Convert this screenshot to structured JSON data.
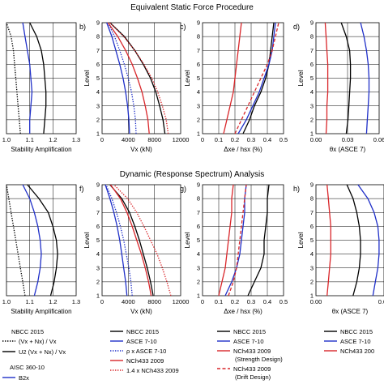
{
  "titles": {
    "top": "Equivalent Static Force Procedure",
    "bottom": "Dynamic (Response Spectrum) Analysis"
  },
  "common": {
    "level_label": "Level",
    "level_ticks": [
      "1",
      "2",
      "3",
      "4",
      "5",
      "6",
      "7",
      "8",
      "9"
    ]
  },
  "panels": {
    "a": {
      "letter": "",
      "xlabel": "Stability Amplification",
      "xticks": [
        "1.0",
        "1.1",
        "1.2",
        "1.3"
      ]
    },
    "b": {
      "letter": "b)",
      "xlabel": "Vx (kN)",
      "xticks": [
        "0",
        "4000",
        "8000",
        "12000"
      ]
    },
    "c": {
      "letter": "c)",
      "xlabel": "Δxe / hsx (%)",
      "xticks": [
        "0",
        "0.1",
        "0.2",
        "0.3",
        "0.4",
        "0.5"
      ]
    },
    "d": {
      "letter": "d)",
      "xlabel": "θx (ASCE 7)",
      "xticks": [
        "0.00",
        "0.03",
        "0.06"
      ]
    },
    "e": {
      "letter": "",
      "xlabel": "Stability Amplification",
      "xticks": [
        "1.0",
        "1.1",
        "1.2",
        "1.3"
      ]
    },
    "f": {
      "letter": "f)",
      "xlabel": "Vx (kN)",
      "xticks": [
        "0",
        "4000",
        "8000",
        "12000"
      ]
    },
    "g": {
      "letter": "g)",
      "xlabel": "Δxe / hsx (%)",
      "xticks": [
        "0",
        "0.1",
        "0.2",
        "0.3",
        "0.4",
        "0.5"
      ]
    },
    "h": {
      "letter": "h)",
      "xlabel": "θx (ASCE 7)",
      "xticks": [
        "0.00",
        "0.03"
      ]
    }
  },
  "legends": {
    "col1": {
      "header": "NBCC 2015",
      "items": [
        "(Vx + Nx) / Vx",
        "U2 (Vx + Nx) / Vx"
      ],
      "header2": "AISC 360-10",
      "items2": [
        "B2x"
      ]
    },
    "col2": {
      "items": [
        "NBCC 2015",
        "ASCE 7-10",
        "ρ x ASCE 7-10",
        "NCh433 2009",
        "1.4 x NCh433 2009"
      ]
    },
    "col3": {
      "items": [
        "NBCC 2015",
        "ASCE 7-10",
        "NCh433 2009",
        "(Strength Design)",
        "NCh433 2009",
        "(Drift Design)"
      ]
    },
    "col4": {
      "items": [
        "NBCC 2015",
        "ASCE 7-10",
        "NCh433 200"
      ]
    }
  },
  "colors": {
    "nbcc": "#000000",
    "asce": "#1f2fc8",
    "nch": "#d9262a"
  },
  "chart_data": [
    {
      "panel": "a",
      "type": "line",
      "title": "Equivalent Static Force Procedure",
      "xlabel": "Stability Amplification",
      "ylabel": "Level",
      "xlim": [
        1.0,
        1.3
      ],
      "ylim": [
        1,
        9
      ],
      "series": [
        {
          "name": "(Vx + Nx) / Vx",
          "style": "dotted",
          "color": "#000000",
          "x": [
            1.06,
            1.055,
            1.05,
            1.045,
            1.04,
            1.035,
            1.03,
            1.02,
            1.0
          ],
          "y": [
            1,
            2,
            3,
            4,
            5,
            6,
            7,
            8,
            9
          ]
        },
        {
          "name": "U2 (Vx + Nx) / Vx",
          "style": "solid",
          "color": "#000000",
          "x": [
            1.16,
            1.165,
            1.17,
            1.17,
            1.165,
            1.16,
            1.15,
            1.13,
            1.1
          ],
          "y": [
            1,
            2,
            3,
            4,
            5,
            6,
            7,
            8,
            9
          ]
        },
        {
          "name": "B2x",
          "style": "solid",
          "color": "#1f2fc8",
          "x": [
            1.1,
            1.1,
            1.105,
            1.11,
            1.105,
            1.1,
            1.09,
            1.08,
            1.07
          ],
          "y": [
            1,
            2,
            3,
            4,
            5,
            6,
            7,
            8,
            9
          ]
        }
      ]
    },
    {
      "panel": "b",
      "type": "line",
      "xlabel": "Vx (kN)",
      "ylabel": "Level",
      "xlim": [
        0,
        12000
      ],
      "ylim": [
        1,
        9
      ],
      "series": [
        {
          "name": "NBCC 2015",
          "style": "solid",
          "color": "#000000",
          "x": [
            9600,
            9300,
            8800,
            8200,
            7400,
            6300,
            5000,
            3400,
            1200
          ],
          "y": [
            1,
            2,
            3,
            4,
            5,
            6,
            7,
            8,
            9
          ]
        },
        {
          "name": "ASCE 7-10",
          "style": "solid",
          "color": "#1f2fc8",
          "x": [
            4200,
            4100,
            3900,
            3600,
            3200,
            2700,
            2100,
            1500,
            700
          ],
          "y": [
            1,
            2,
            3,
            4,
            5,
            6,
            7,
            8,
            9
          ]
        },
        {
          "name": "ρ x ASCE 7-10",
          "style": "dotted",
          "color": "#1f2fc8",
          "x": [
            5200,
            5100,
            4850,
            4500,
            4000,
            3400,
            2700,
            1900,
            900
          ],
          "y": [
            1,
            2,
            3,
            4,
            5,
            6,
            7,
            8,
            9
          ]
        },
        {
          "name": "NCh433 2009",
          "style": "solid",
          "color": "#d9262a",
          "x": [
            7200,
            7000,
            6600,
            6100,
            5400,
            4600,
            3600,
            2400,
            900
          ],
          "y": [
            1,
            2,
            3,
            4,
            5,
            6,
            7,
            8,
            9
          ]
        },
        {
          "name": "1.4 x NCh433 2009",
          "style": "dotted",
          "color": "#d9262a",
          "x": [
            10100,
            9800,
            9200,
            8500,
            7600,
            6400,
            5000,
            3300,
            1200
          ],
          "y": [
            1,
            2,
            3,
            4,
            5,
            6,
            7,
            8,
            9
          ]
        }
      ]
    },
    {
      "panel": "c",
      "type": "line",
      "xlabel": "Δxe / hsx (%)",
      "ylabel": "Level",
      "xlim": [
        0,
        0.5
      ],
      "ylim": [
        1,
        9
      ],
      "series": [
        {
          "name": "NBCC 2015",
          "style": "solid",
          "color": "#000000",
          "x": [
            0.25,
            0.29,
            0.32,
            0.36,
            0.39,
            0.41,
            0.42,
            0.43,
            0.44
          ],
          "y": [
            1,
            2,
            3,
            4,
            5,
            6,
            7,
            8,
            9
          ]
        },
        {
          "name": "ASCE 7-10",
          "style": "solid",
          "color": "#1f2fc8",
          "x": [
            0.22,
            0.27,
            0.31,
            0.35,
            0.38,
            0.41,
            0.43,
            0.44,
            0.45
          ],
          "y": [
            1,
            2,
            3,
            4,
            5,
            6,
            7,
            8,
            9
          ]
        },
        {
          "name": "NCh433 2009 (Strength Design)",
          "style": "solid",
          "color": "#d9262a",
          "x": [
            0.13,
            0.15,
            0.17,
            0.19,
            0.2,
            0.21,
            0.22,
            0.23,
            0.24
          ],
          "y": [
            1,
            2,
            3,
            4,
            5,
            6,
            7,
            8,
            9
          ]
        },
        {
          "name": "NCh433 2009 (Drift Design)",
          "style": "dashed",
          "color": "#d9262a",
          "x": [
            0.2,
            0.24,
            0.28,
            0.32,
            0.36,
            0.4,
            0.43,
            0.45,
            0.47
          ],
          "y": [
            1,
            2,
            3,
            4,
            5,
            6,
            7,
            8,
            9
          ]
        }
      ]
    },
    {
      "panel": "d",
      "type": "line",
      "xlabel": "θx (ASCE 7)",
      "ylabel": "Level",
      "xlim": [
        0,
        0.075
      ],
      "ylim": [
        1,
        9
      ],
      "series": [
        {
          "name": "NBCC 2015",
          "style": "solid",
          "color": "#000000",
          "x": [
            0.036,
            0.038,
            0.039,
            0.04,
            0.041,
            0.041,
            0.04,
            0.036,
            0.03
          ],
          "y": [
            1,
            2,
            3,
            4,
            5,
            6,
            7,
            8,
            9
          ]
        },
        {
          "name": "ASCE 7-10",
          "style": "solid",
          "color": "#1f2fc8",
          "x": [
            0.06,
            0.061,
            0.062,
            0.063,
            0.063,
            0.062,
            0.06,
            0.057,
            0.053
          ],
          "y": [
            1,
            2,
            3,
            4,
            5,
            6,
            7,
            8,
            9
          ]
        },
        {
          "name": "NCh433 2009",
          "style": "solid",
          "color": "#d9262a",
          "x": [
            0.012,
            0.013,
            0.013,
            0.014,
            0.014,
            0.014,
            0.013,
            0.012,
            0.011
          ],
          "y": [
            1,
            2,
            3,
            4,
            5,
            6,
            7,
            8,
            9
          ]
        }
      ]
    },
    {
      "panel": "e",
      "type": "line",
      "title": "Dynamic (Response Spectrum) Analysis",
      "xlabel": "Stability Amplification",
      "ylabel": "Level",
      "xlim": [
        1.0,
        1.3
      ],
      "ylim": [
        1,
        9
      ],
      "series": [
        {
          "name": "(Vx + Nx) / Vx",
          "style": "dotted",
          "color": "#000000",
          "x": [
            1.08,
            1.07,
            1.06,
            1.05,
            1.04,
            1.03,
            1.02,
            1.01,
            1.0
          ],
          "y": [
            1,
            2,
            3,
            4,
            5,
            6,
            7,
            8,
            9
          ]
        },
        {
          "name": "U2 (Vx + Nx) / Vx",
          "style": "solid",
          "color": "#000000",
          "x": [
            1.19,
            1.205,
            1.215,
            1.22,
            1.215,
            1.2,
            1.18,
            1.14,
            1.09
          ],
          "y": [
            1,
            2,
            3,
            4,
            5,
            6,
            7,
            8,
            9
          ]
        },
        {
          "name": "B2x",
          "style": "solid",
          "color": "#1f2fc8",
          "x": [
            1.12,
            1.135,
            1.145,
            1.15,
            1.145,
            1.135,
            1.12,
            1.1,
            1.07
          ],
          "y": [
            1,
            2,
            3,
            4,
            5,
            6,
            7,
            8,
            9
          ]
        }
      ]
    },
    {
      "panel": "f",
      "type": "line",
      "xlabel": "Vx (kN)",
      "ylabel": "Level",
      "xlim": [
        0,
        12000
      ],
      "ylim": [
        1,
        9
      ],
      "series": [
        {
          "name": "NBCC 2015",
          "style": "solid",
          "color": "#000000",
          "x": [
            7800,
            7400,
            6900,
            6300,
            5700,
            5000,
            4200,
            3000,
            1200
          ],
          "y": [
            1,
            2,
            3,
            4,
            5,
            6,
            7,
            8,
            9
          ]
        },
        {
          "name": "ASCE 7-10",
          "style": "solid",
          "color": "#1f2fc8",
          "x": [
            3800,
            3600,
            3300,
            3000,
            2700,
            2300,
            1800,
            1200,
            500
          ],
          "y": [
            1,
            2,
            3,
            4,
            5,
            6,
            7,
            8,
            9
          ]
        },
        {
          "name": "ρ x ASCE 7-10",
          "style": "dotted",
          "color": "#1f2fc8",
          "x": [
            4600,
            4400,
            4100,
            3700,
            3300,
            2800,
            2200,
            1500,
            600
          ],
          "y": [
            1,
            2,
            3,
            4,
            5,
            6,
            7,
            8,
            9
          ]
        },
        {
          "name": "NCh433 2009",
          "style": "solid",
          "color": "#d9262a",
          "x": [
            7500,
            7100,
            6600,
            6000,
            5300,
            4600,
            3800,
            2800,
            1300
          ],
          "y": [
            1,
            2,
            3,
            4,
            5,
            6,
            7,
            8,
            9
          ]
        },
        {
          "name": "1.4 x NCh433 2009",
          "style": "dotted",
          "color": "#d9262a",
          "x": [
            10500,
            9900,
            9200,
            8400,
            7400,
            6400,
            5300,
            3900,
            1800
          ],
          "y": [
            1,
            2,
            3,
            4,
            5,
            6,
            7,
            8,
            9
          ]
        }
      ]
    },
    {
      "panel": "g",
      "type": "line",
      "xlabel": "Δxe / hsx (%)",
      "ylabel": "Level",
      "xlim": [
        0,
        0.5
      ],
      "ylim": [
        1,
        9
      ],
      "series": [
        {
          "name": "NBCC 2015",
          "style": "solid",
          "color": "#000000",
          "x": [
            0.28,
            0.32,
            0.36,
            0.38,
            0.38,
            0.39,
            0.4,
            0.4,
            0.41
          ],
          "y": [
            1,
            2,
            3,
            4,
            5,
            6,
            7,
            8,
            9
          ]
        },
        {
          "name": "ASCE 7-10",
          "style": "solid",
          "color": "#1f2fc8",
          "x": [
            0.14,
            0.18,
            0.21,
            0.23,
            0.24,
            0.25,
            0.26,
            0.26,
            0.27
          ],
          "y": [
            1,
            2,
            3,
            4,
            5,
            6,
            7,
            8,
            9
          ]
        },
        {
          "name": "NCh433 2009 (Strength Design)",
          "style": "solid",
          "color": "#d9262a",
          "x": [
            0.1,
            0.12,
            0.14,
            0.15,
            0.16,
            0.17,
            0.18,
            0.18,
            0.19
          ],
          "y": [
            1,
            2,
            3,
            4,
            5,
            6,
            7,
            8,
            9
          ]
        },
        {
          "name": "NCh433 2009 (Drift Design)",
          "style": "dashed",
          "color": "#d9262a",
          "x": [
            0.16,
            0.19,
            0.21,
            0.22,
            0.23,
            0.24,
            0.25,
            0.26,
            0.27
          ],
          "y": [
            1,
            2,
            3,
            4,
            5,
            6,
            7,
            8,
            9
          ]
        }
      ]
    },
    {
      "panel": "h",
      "type": "line",
      "xlabel": "θx (ASCE 7)",
      "ylabel": "Level",
      "xlim": [
        0,
        0.055
      ],
      "ylim": [
        1,
        9
      ],
      "series": [
        {
          "name": "NBCC 2015",
          "style": "solid",
          "color": "#000000",
          "x": [
            0.03,
            0.033,
            0.035,
            0.036,
            0.036,
            0.035,
            0.033,
            0.03,
            0.025
          ],
          "y": [
            1,
            2,
            3,
            4,
            5,
            6,
            7,
            8,
            9
          ]
        },
        {
          "name": "ASCE 7-10",
          "style": "solid",
          "color": "#1f2fc8",
          "x": [
            0.046,
            0.048,
            0.05,
            0.051,
            0.051,
            0.05,
            0.047,
            0.042,
            0.034
          ],
          "y": [
            1,
            2,
            3,
            4,
            5,
            6,
            7,
            8,
            9
          ]
        },
        {
          "name": "NCh433 2009",
          "style": "solid",
          "color": "#d9262a",
          "x": [
            0.009,
            0.01,
            0.011,
            0.012,
            0.012,
            0.012,
            0.011,
            0.01,
            0.009
          ],
          "y": [
            1,
            2,
            3,
            4,
            5,
            6,
            7,
            8,
            9
          ]
        }
      ]
    }
  ]
}
